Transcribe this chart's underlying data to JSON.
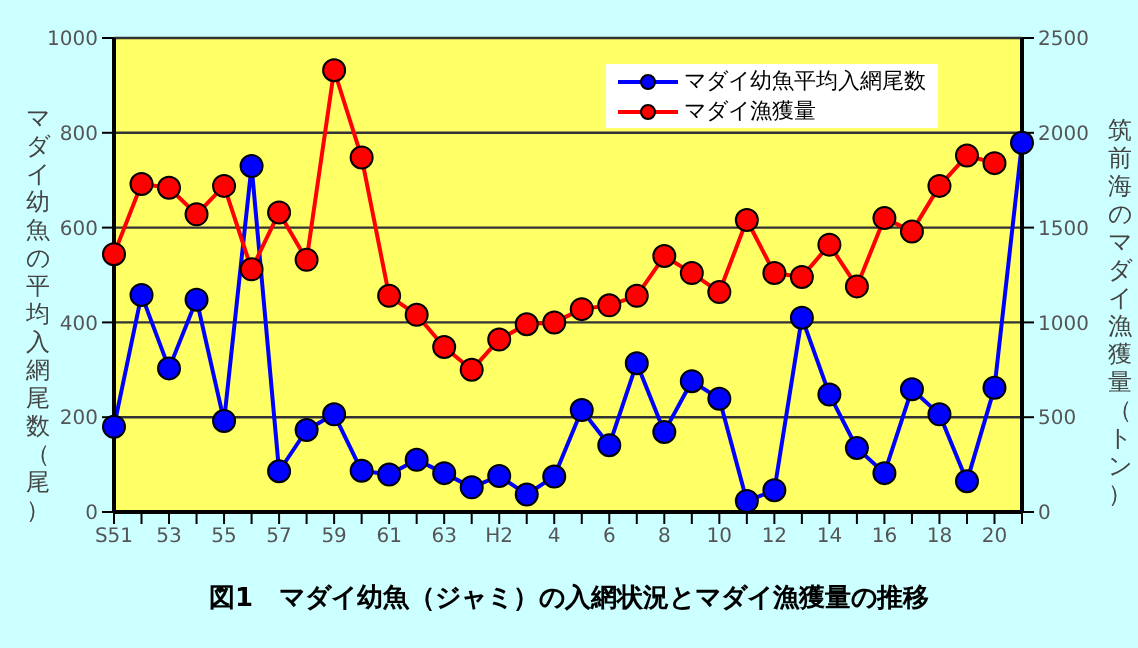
{
  "chart_data": {
    "type": "line",
    "title": "図1　マダイ幼魚（ジャミ）の入網状況とマダイ漁獲量の推移",
    "ylabel": "マダイ幼魚の平均入網尾数（尾）",
    "y2label": "筑前海のマダイ漁獲量（トン）",
    "categories": [
      "S51",
      null,
      "53",
      null,
      "55",
      null,
      "57",
      null,
      "59",
      null,
      "61",
      null,
      "63",
      null,
      "H2",
      null,
      "4",
      null,
      "6",
      null,
      "8",
      null,
      "10",
      null,
      "12",
      null,
      "14",
      null,
      "16",
      null,
      "18",
      null,
      "20",
      null
    ],
    "series": [
      {
        "name": "マダイ幼魚平均入網尾数",
        "color": "#0000ff",
        "values": [
          180,
          458,
          303,
          448,
          192,
          730,
          86,
          173,
          206,
          87,
          79,
          110,
          82,
          52,
          76,
          37,
          75,
          215,
          141,
          314,
          169,
          276,
          239,
          23,
          46,
          410,
          248,
          135,
          82,
          259,
          206,
          65,
          262,
          779
        ]
      },
      {
        "name": "マダイ漁獲量",
        "color": "#ff0000",
        "axis": "y2",
        "values": [
          1360,
          1730,
          1710,
          1570,
          1720,
          1280,
          1580,
          1330,
          2330,
          1870,
          1140,
          1040,
          870,
          750,
          910,
          990,
          1000,
          1070,
          1090,
          1140,
          1350,
          1260,
          1160,
          1540,
          1260,
          1240,
          1410,
          1190,
          1550,
          1480,
          1720,
          1880,
          1840,
          null
        ]
      }
    ],
    "ylim": [
      0,
      1000
    ],
    "yticks": [
      0,
      200,
      400,
      600,
      800,
      1000
    ],
    "y2lim": [
      0,
      2500
    ],
    "y2ticks": [
      0,
      500,
      1000,
      1500,
      2000,
      2500
    ],
    "grid": "y",
    "legend": "top right",
    "marker": "circle",
    "line_style": "solid"
  }
}
